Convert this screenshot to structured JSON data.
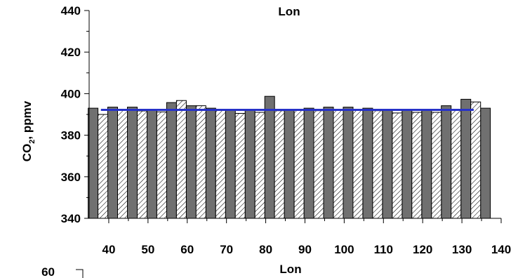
{
  "chart_data": {
    "type": "bar",
    "title": "Lon",
    "xlabel": "Lon",
    "ylabel": "CO2, ppmv",
    "ylabel_main": "CO",
    "ylabel_sub": "2",
    "ylabel_rest": ", ppmv",
    "ylim": [
      340,
      440
    ],
    "xlim": [
      35,
      140
    ],
    "yticks": [
      340,
      360,
      380,
      400,
      420,
      440
    ],
    "xticks": [
      40,
      50,
      60,
      70,
      80,
      90,
      100,
      110,
      120,
      130,
      140
    ],
    "series": [
      {
        "style": "solid-gray",
        "x": [
          36,
          41,
          46,
          51,
          56,
          61,
          66,
          71,
          76,
          81,
          86,
          91,
          96,
          101,
          106,
          111,
          116,
          121,
          126,
          131,
          136
        ],
        "values": [
          393,
          393.5,
          393.5,
          392.3,
          395.7,
          394.2,
          393,
          392.3,
          392.5,
          398.7,
          392.4,
          393,
          393.5,
          393.5,
          393,
          392.3,
          392.4,
          392.4,
          394.2,
          397.3,
          393
        ]
      },
      {
        "style": "hatched",
        "x": [
          38.5,
          43.5,
          48.5,
          53.5,
          58.5,
          63.5,
          68.5,
          73.5,
          78.5,
          83.5,
          88.5,
          93.5,
          98.5,
          103.5,
          108.5,
          113.5,
          118.5,
          123.5,
          128.5,
          133.5
        ],
        "values": [
          390,
          392,
          391.7,
          391.2,
          396.7,
          394.2,
          392,
          390.5,
          391,
          391.8,
          392,
          391.8,
          392.2,
          392.2,
          391.8,
          390.7,
          391,
          391,
          392,
          396
        ]
      }
    ],
    "reference_line": {
      "y": 392.2,
      "x_start": 38,
      "x_end": 133,
      "color": "#2732c8"
    },
    "below_text": {
      "tick": "60"
    },
    "colors": {
      "solid": "#707070",
      "hatch": "#000000",
      "line": "#2732c8"
    }
  }
}
